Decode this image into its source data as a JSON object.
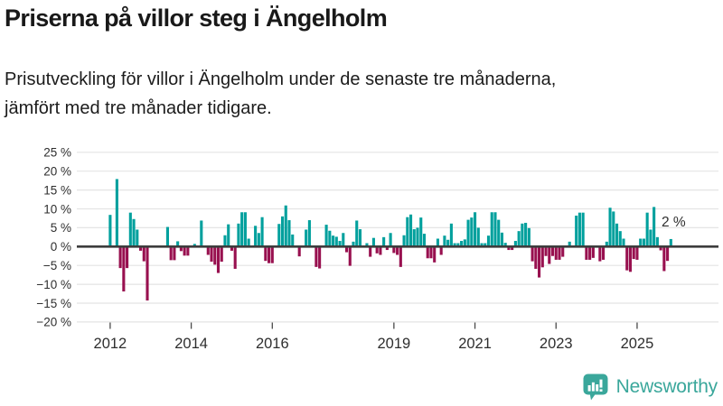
{
  "header": {
    "title": "Priserna på villor steg i Ängelholm",
    "subtitle_line1": "Prisutveckling för villor i Ängelholm under de senaste tre månaderna,",
    "subtitle_line2": "jämfört med tre månader tidigare."
  },
  "chart_data": {
    "type": "bar",
    "title": "Priserna på villor steg i Ängelholm",
    "unit": "%",
    "frequency": "monthly",
    "start_month": "2012-01",
    "end_month": "2025-11",
    "values": [
      8.4,
      0,
      17.9,
      -5.7,
      -11.9,
      -5.7,
      9,
      7.3,
      4.5,
      -1.1,
      -3.9,
      -14.3,
      0,
      0,
      0,
      0,
      0,
      5.2,
      -3.6,
      -3.6,
      1.4,
      -1.2,
      -2.4,
      -2.4,
      0,
      0.7,
      0,
      6.9,
      0,
      -2.2,
      -4,
      -4.8,
      -7,
      -4,
      3,
      5.9,
      -1.1,
      -5.9,
      6.1,
      9.1,
      9.1,
      2.1,
      0,
      5.5,
      3.6,
      7.8,
      -3.8,
      -4.4,
      -4.4,
      0,
      6,
      8,
      10.9,
      7,
      3.2,
      0,
      -2.6,
      0,
      4.5,
      7,
      0,
      -5.4,
      -5.8,
      0,
      5.8,
      4.2,
      2.9,
      2.6,
      1.5,
      3.6,
      -1.5,
      -5.1,
      1.3,
      6.9,
      4.6,
      0,
      0.9,
      -2.7,
      2.3,
      -1.8,
      -2.2,
      2.5,
      -0.9,
      3.6,
      -1.7,
      -2.2,
      -5.4,
      3,
      7.8,
      8.5,
      4.6,
      5,
      7.7,
      3.4,
      -3.1,
      -3.1,
      -4.2,
      2.1,
      -2.2,
      2.9,
      1.8,
      6.1,
      0.9,
      0.9,
      1.5,
      1.9,
      7.1,
      7.7,
      9.1,
      5,
      0.9,
      0.9,
      2.9,
      9.1,
      9.1,
      7.1,
      3.7,
      1,
      -0.9,
      -0.9,
      1.5,
      4.1,
      6.1,
      6.3,
      4.9,
      -3.9,
      -5.9,
      -8.2,
      -5.5,
      -2.5,
      -4.6,
      -2.5,
      -3.5,
      -3.5,
      -2.7,
      0,
      1.3,
      0,
      8.2,
      9,
      9,
      -3.5,
      -3.5,
      -3,
      0,
      -3.9,
      -3.5,
      1.3,
      10.3,
      9.3,
      6.1,
      4.1,
      2.1,
      -6.3,
      -6.7,
      -3.3,
      -3.5,
      2.1,
      2.1,
      9,
      4.5,
      10.5,
      2.5,
      -1,
      -6.5,
      -3.8,
      2
    ],
    "ylim": [
      -20,
      25
    ],
    "yticks": [
      25,
      20,
      15,
      10,
      5,
      0,
      -5,
      -10,
      -15,
      -20
    ],
    "ytick_suffix": " %",
    "xticks": [
      2012,
      2014,
      2016,
      2019,
      2021,
      2023,
      2025
    ],
    "grid": true,
    "legend": "none",
    "annotation": {
      "label": "2 %",
      "value": 2,
      "month": "2025-11"
    },
    "colors": {
      "positive": "#00a09d",
      "negative": "#98104f",
      "zero_line": "#3d3d3d",
      "gridline": "#e4e4e4",
      "tick_label": "#2e2e2e"
    }
  },
  "footer": {
    "brand": "Newsworthy",
    "brand_color": "#3aa79b"
  }
}
